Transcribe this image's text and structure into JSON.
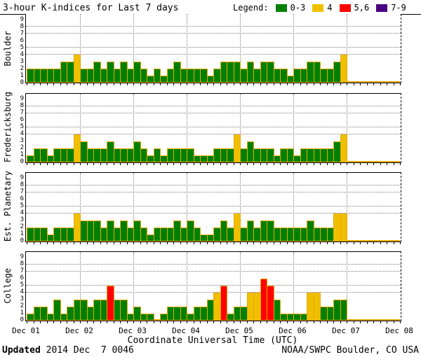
{
  "title": "3-hour K-indices for Last 7 days",
  "legend": {
    "label": "Legend:",
    "items": [
      {
        "label": "0-3",
        "color": "#008000"
      },
      {
        "label": "4",
        "color": "#F0C000"
      },
      {
        "label": "5,6",
        "color": "#FF0000"
      },
      {
        "label": "7-9",
        "color": "#4B0082"
      }
    ]
  },
  "axis": {
    "x_ticks": [
      "Dec 01",
      "Dec 02",
      "Dec 03",
      "Dec 04",
      "Dec 05",
      "Dec 06",
      "Dec 07",
      "Dec 08"
    ],
    "x_title": "Coordinate Universal Time (UTC)",
    "y_ticks": [
      "0",
      "1",
      "2",
      "3",
      "4",
      "5",
      "6",
      "7",
      "8",
      "9"
    ]
  },
  "footer": {
    "updated_label": "Updated",
    "updated_value": " 2014 Dec  7 0046",
    "source": "NOAA/SWPC Boulder, CO USA"
  },
  "chart_data": {
    "type": "bar",
    "title": "3-hour K-indices for Last 7 days",
    "interval_hours": 3,
    "bars_per_day": 8,
    "days_plotted": [
      "Dec 01",
      "Dec 02",
      "Dec 03",
      "Dec 04",
      "Dec 05",
      "Dec 06"
    ],
    "no_data_days": [
      "Dec 07"
    ],
    "ylim": [
      0,
      9
    ],
    "y_gridlines": [
      4,
      5,
      7,
      8
    ],
    "colors": {
      "green": "#008000",
      "yellow": "#F0C000",
      "red": "#FF0000",
      "purple": "#4B0082",
      "bar_outline": "#E8A800"
    },
    "color_rules": [
      {
        "k_range": "0-3",
        "color_name": "green"
      },
      {
        "k_range": "4",
        "color_name": "yellow"
      },
      {
        "k_range": "5,6",
        "color_name": "red"
      },
      {
        "k_range": "7-9",
        "color_name": "purple"
      }
    ],
    "series": [
      {
        "name": "Boulder",
        "values": [
          2,
          2,
          2,
          2,
          2,
          3,
          3,
          4,
          2,
          2,
          3,
          2,
          3,
          2,
          3,
          2,
          3,
          2,
          1,
          2,
          1,
          2,
          3,
          2,
          2,
          2,
          2,
          1,
          2,
          3,
          3,
          3,
          2,
          3,
          2,
          3,
          3,
          2,
          2,
          1,
          2,
          2,
          3,
          3,
          2,
          2,
          3,
          4
        ]
      },
      {
        "name": "Fredericksburg",
        "values": [
          1,
          2,
          2,
          1,
          2,
          2,
          2,
          4,
          3,
          2,
          2,
          2,
          3,
          2,
          2,
          2,
          3,
          2,
          1,
          2,
          1,
          2,
          2,
          2,
          2,
          1,
          1,
          1,
          2,
          2,
          2,
          4,
          2,
          3,
          2,
          2,
          2,
          1,
          2,
          2,
          1,
          2,
          2,
          2,
          2,
          2,
          3,
          4
        ]
      },
      {
        "name": "Est. Planetary",
        "values": [
          2,
          2,
          2,
          1,
          2,
          2,
          2,
          4,
          3,
          3,
          3,
          2,
          3,
          2,
          3,
          2,
          3,
          2,
          1,
          2,
          2,
          2,
          3,
          2,
          3,
          2,
          1,
          1,
          2,
          3,
          2,
          4,
          2,
          3,
          2,
          3,
          3,
          2,
          2,
          2,
          2,
          2,
          3,
          2,
          2,
          2,
          4,
          4
        ]
      },
      {
        "name": "College",
        "values": [
          1,
          2,
          2,
          1,
          3,
          1,
          2,
          3,
          3,
          2,
          3,
          3,
          5,
          3,
          3,
          1,
          2,
          1,
          1,
          0,
          1,
          2,
          2,
          2,
          1,
          2,
          2,
          3,
          4,
          5,
          1,
          2,
          2,
          4,
          4,
          6,
          5,
          3,
          1,
          1,
          1,
          1,
          4,
          4,
          2,
          2,
          3,
          3
        ]
      }
    ]
  }
}
